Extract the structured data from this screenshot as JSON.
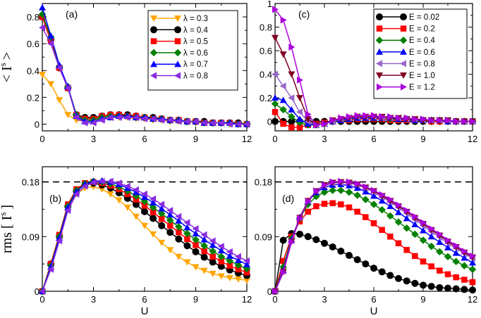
{
  "chart_data": [
    {
      "type": "line",
      "panel": "a",
      "panel_label": "(a)",
      "ylabel_main": "< I",
      "ylabel_sup": "s",
      "ylabel_close": ">",
      "xlabel": "",
      "xlim": [
        0,
        12
      ],
      "ylim": [
        -0.05,
        0.9
      ],
      "xticks": [
        0,
        3,
        6,
        9,
        12
      ],
      "yticks": [
        0,
        0.2,
        0.4,
        0.6,
        0.8
      ],
      "ytick_labels": [
        "0",
        "0.2",
        "0.4",
        "0.6",
        "0.8"
      ],
      "legend_position": "top-right",
      "x": [
        0,
        0.5,
        1,
        1.5,
        2,
        2.5,
        3,
        3.5,
        4,
        4.5,
        5,
        5.5,
        6,
        6.5,
        7,
        7.5,
        8,
        8.5,
        9,
        9.5,
        10,
        10.5,
        11,
        11.5,
        12
      ],
      "series": [
        {
          "name": "λ = 0.3",
          "color": "#ffa500",
          "marker": "triangle-down",
          "values": [
            0.37,
            0.3,
            0.18,
            0.07,
            0.03,
            0.02,
            0.03,
            0.04,
            0.05,
            0.05,
            0.05,
            0.04,
            0.04,
            0.03,
            0.03,
            0.02,
            0.02,
            0.02,
            0.01,
            0.01,
            0.01,
            0.01,
            0.0,
            0.0,
            0.0
          ]
        },
        {
          "name": "λ = 0.4",
          "color": "#000000",
          "marker": "circle",
          "values": [
            0.8,
            0.63,
            0.42,
            0.27,
            0.07,
            0.05,
            0.05,
            0.06,
            0.07,
            0.07,
            0.07,
            0.06,
            0.05,
            0.05,
            0.04,
            0.03,
            0.03,
            0.02,
            0.02,
            0.02,
            0.01,
            0.01,
            0.01,
            0.01,
            0.0
          ]
        },
        {
          "name": "λ = 0.5",
          "color": "#ff0000",
          "marker": "square",
          "values": [
            0.8,
            0.62,
            0.42,
            0.27,
            0.07,
            0.04,
            0.04,
            0.06,
            0.07,
            0.07,
            0.06,
            0.06,
            0.05,
            0.04,
            0.04,
            0.03,
            0.03,
            0.02,
            0.02,
            0.01,
            0.01,
            0.01,
            0.01,
            0.0,
            0.0
          ]
        },
        {
          "name": "λ = 0.6",
          "color": "#008000",
          "marker": "diamond",
          "values": [
            0.82,
            0.65,
            0.43,
            0.28,
            0.07,
            0.03,
            0.03,
            0.05,
            0.06,
            0.06,
            0.06,
            0.05,
            0.05,
            0.04,
            0.04,
            0.03,
            0.03,
            0.02,
            0.02,
            0.01,
            0.01,
            0.01,
            0.01,
            0.0,
            0.0
          ]
        },
        {
          "name": "λ = 0.7",
          "color": "#0000ff",
          "marker": "triangle-up",
          "values": [
            0.87,
            0.66,
            0.44,
            0.28,
            0.06,
            0.02,
            0.02,
            0.04,
            0.05,
            0.06,
            0.06,
            0.05,
            0.05,
            0.04,
            0.04,
            0.03,
            0.03,
            0.02,
            0.02,
            0.01,
            0.01,
            0.01,
            0.01,
            0.0,
            0.0
          ]
        },
        {
          "name": "λ = 0.8",
          "color": "#8a2be2",
          "marker": "triangle-left",
          "values": [
            0.72,
            0.6,
            0.42,
            0.27,
            0.05,
            0.01,
            0.01,
            0.03,
            0.05,
            0.05,
            0.05,
            0.05,
            0.04,
            0.04,
            0.03,
            0.03,
            0.02,
            0.02,
            0.02,
            0.01,
            0.01,
            0.01,
            0.0,
            0.0,
            0.0
          ]
        }
      ]
    },
    {
      "type": "line",
      "panel": "c",
      "panel_label": "(c)",
      "xlabel": "",
      "xlim": [
        0,
        12
      ],
      "ylim": [
        -0.08,
        1.0
      ],
      "xticks": [
        0,
        3,
        6,
        9,
        12
      ],
      "yticks": [
        0,
        0.2,
        0.4,
        0.6,
        0.8,
        1.0
      ],
      "ytick_labels": [
        "0",
        "0.2",
        "0.4",
        "0.6",
        "0.8",
        "1"
      ],
      "legend_position": "top-right",
      "x": [
        0,
        0.5,
        1,
        1.5,
        2,
        2.5,
        3,
        3.5,
        4,
        4.5,
        5,
        5.5,
        6,
        6.5,
        7,
        7.5,
        8,
        8.5,
        9,
        9.5,
        10,
        10.5,
        11,
        11.5,
        12
      ],
      "series": [
        {
          "name": "E = 0.02",
          "color": "#000000",
          "marker": "circle",
          "values": [
            0.0,
            0.0,
            0.0,
            0.0,
            0.0,
            0.0,
            0.0,
            0.0,
            0.0,
            0.0,
            0.0,
            0.0,
            0.0,
            0.0,
            0.0,
            0.0,
            0.0,
            0.0,
            0.0,
            0.0,
            0.0,
            0.0,
            0.0,
            0.0,
            0.0
          ]
        },
        {
          "name": "E = 0.2",
          "color": "#ff0000",
          "marker": "square",
          "values": [
            0.08,
            -0.02,
            -0.05,
            -0.05,
            -0.03,
            -0.02,
            -0.01,
            0.0,
            0.01,
            0.01,
            0.02,
            0.02,
            0.02,
            0.02,
            0.01,
            0.01,
            0.01,
            0.01,
            0.01,
            0.0,
            0.0,
            0.0,
            0.0,
            0.0,
            0.0
          ]
        },
        {
          "name": "E = 0.4",
          "color": "#008000",
          "marker": "diamond",
          "values": [
            0.15,
            0.1,
            0.04,
            -0.01,
            -0.03,
            -0.03,
            -0.02,
            0.0,
            0.01,
            0.02,
            0.03,
            0.03,
            0.03,
            0.03,
            0.02,
            0.02,
            0.02,
            0.01,
            0.01,
            0.01,
            0.01,
            0.0,
            0.0,
            0.0,
            0.0
          ]
        },
        {
          "name": "E = 0.6",
          "color": "#0000ff",
          "marker": "triangle-up",
          "values": [
            0.2,
            0.18,
            0.1,
            0.02,
            -0.02,
            -0.03,
            -0.02,
            0.0,
            0.01,
            0.02,
            0.03,
            0.03,
            0.03,
            0.03,
            0.03,
            0.02,
            0.02,
            0.01,
            0.01,
            0.01,
            0.01,
            0.0,
            0.0,
            0.0,
            0.0
          ]
        },
        {
          "name": "E = 0.8",
          "color": "#9966cc",
          "marker": "triangle-left",
          "values": [
            0.4,
            0.3,
            0.2,
            0.08,
            0.0,
            -0.03,
            -0.02,
            0.0,
            0.02,
            0.03,
            0.04,
            0.04,
            0.04,
            0.03,
            0.03,
            0.03,
            0.02,
            0.02,
            0.01,
            0.01,
            0.01,
            0.01,
            0.0,
            0.0,
            0.0
          ]
        },
        {
          "name": "E = 1.0",
          "color": "#800020",
          "marker": "triangle-down",
          "values": [
            0.71,
            0.57,
            0.4,
            0.2,
            0.02,
            -0.03,
            -0.02,
            0.01,
            0.02,
            0.03,
            0.04,
            0.04,
            0.04,
            0.04,
            0.03,
            0.03,
            0.02,
            0.02,
            0.01,
            0.01,
            0.01,
            0.01,
            0.0,
            0.0,
            0.0
          ]
        },
        {
          "name": "E = 1.2",
          "color": "#aa00dd",
          "marker": "triangle-right",
          "values": [
            0.95,
            0.86,
            0.63,
            0.35,
            0.06,
            -0.03,
            -0.02,
            0.01,
            0.03,
            0.04,
            0.05,
            0.05,
            0.05,
            0.04,
            0.04,
            0.03,
            0.03,
            0.02,
            0.02,
            0.01,
            0.01,
            0.01,
            0.0,
            0.0,
            0.0
          ]
        }
      ]
    },
    {
      "type": "line",
      "panel": "b",
      "panel_label": "(b)",
      "ylabel_main": "rms [ I",
      "ylabel_sup": "s",
      "ylabel_close": "]",
      "xlabel": "U",
      "xlim": [
        0,
        12
      ],
      "ylim": [
        0,
        0.205
      ],
      "xticks": [
        0,
        3,
        6,
        9,
        12
      ],
      "yticks": [
        0,
        0.09,
        0.18
      ],
      "ytick_labels": [
        "0",
        "0.09",
        "0.18"
      ],
      "reference_line": 0.18,
      "x": [
        0,
        0.5,
        1,
        1.5,
        2,
        2.5,
        3,
        3.5,
        4,
        4.5,
        5,
        5.5,
        6,
        6.5,
        7,
        7.5,
        8,
        8.5,
        9,
        9.5,
        10,
        10.5,
        11,
        11.5,
        12
      ],
      "series": [
        {
          "name": "λ = 0.3",
          "color": "#ffa500",
          "marker": "triangle-down",
          "values": [
            0.0,
            0.045,
            0.09,
            0.135,
            0.16,
            0.17,
            0.172,
            0.168,
            0.16,
            0.15,
            0.138,
            0.123,
            0.108,
            0.094,
            0.08,
            0.068,
            0.057,
            0.048,
            0.04,
            0.034,
            0.029,
            0.025,
            0.022,
            0.02,
            0.018
          ]
        },
        {
          "name": "λ = 0.4",
          "color": "#000000",
          "marker": "circle",
          "values": [
            0.0,
            0.045,
            0.09,
            0.14,
            0.165,
            0.176,
            0.178,
            0.175,
            0.17,
            0.162,
            0.153,
            0.143,
            0.131,
            0.12,
            0.108,
            0.097,
            0.086,
            0.075,
            0.065,
            0.056,
            0.048,
            0.041,
            0.035,
            0.03,
            0.026
          ]
        },
        {
          "name": "λ = 0.5",
          "color": "#ff0000",
          "marker": "square",
          "values": [
            0.0,
            0.045,
            0.093,
            0.143,
            0.168,
            0.178,
            0.18,
            0.178,
            0.174,
            0.168,
            0.16,
            0.151,
            0.141,
            0.13,
            0.119,
            0.108,
            0.097,
            0.086,
            0.076,
            0.066,
            0.057,
            0.049,
            0.042,
            0.036,
            0.031
          ]
        },
        {
          "name": "λ = 0.6",
          "color": "#008000",
          "marker": "diamond",
          "values": [
            0.0,
            0.042,
            0.09,
            0.14,
            0.166,
            0.177,
            0.181,
            0.18,
            0.177,
            0.172,
            0.165,
            0.157,
            0.148,
            0.138,
            0.128,
            0.117,
            0.106,
            0.095,
            0.085,
            0.075,
            0.066,
            0.057,
            0.05,
            0.043,
            0.037
          ]
        },
        {
          "name": "λ = 0.7",
          "color": "#0000ff",
          "marker": "triangle-up",
          "values": [
            0.0,
            0.04,
            0.088,
            0.138,
            0.164,
            0.176,
            0.181,
            0.182,
            0.18,
            0.176,
            0.17,
            0.163,
            0.155,
            0.146,
            0.136,
            0.126,
            0.116,
            0.105,
            0.095,
            0.085,
            0.076,
            0.067,
            0.058,
            0.051,
            0.044
          ]
        },
        {
          "name": "λ = 0.8",
          "color": "#8a2be2",
          "marker": "triangle-left",
          "values": [
            0.0,
            0.036,
            0.083,
            0.133,
            0.16,
            0.173,
            0.179,
            0.181,
            0.181,
            0.178,
            0.173,
            0.167,
            0.16,
            0.152,
            0.143,
            0.133,
            0.123,
            0.113,
            0.103,
            0.093,
            0.083,
            0.074,
            0.065,
            0.057,
            0.05
          ]
        }
      ]
    },
    {
      "type": "line",
      "panel": "d",
      "panel_label": "(d)",
      "xlabel": "U",
      "xlim": [
        0,
        12
      ],
      "ylim": [
        0,
        0.205
      ],
      "xticks": [
        0,
        3,
        6,
        9,
        12
      ],
      "yticks": [
        0,
        0.09,
        0.18
      ],
      "ytick_labels": [
        "0",
        "0.09",
        "0.18"
      ],
      "reference_line": 0.18,
      "x": [
        0,
        0.5,
        1,
        1.5,
        2,
        2.5,
        3,
        3.5,
        4,
        4.5,
        5,
        5.5,
        6,
        6.5,
        7,
        7.5,
        8,
        8.5,
        9,
        9.5,
        10,
        10.5,
        11,
        11.5,
        12
      ],
      "series": [
        {
          "name": "E = 0.02",
          "color": "#000000",
          "marker": "circle",
          "values": [
            0.0,
            0.084,
            0.095,
            0.094,
            0.09,
            0.085,
            0.079,
            0.073,
            0.066,
            0.059,
            0.052,
            0.045,
            0.038,
            0.032,
            0.026,
            0.021,
            0.017,
            0.013,
            0.01,
            0.008,
            0.006,
            0.005,
            0.004,
            0.003,
            0.002
          ]
        },
        {
          "name": "E = 0.2",
          "color": "#ff0000",
          "marker": "square",
          "values": [
            0.0,
            0.05,
            0.09,
            0.115,
            0.131,
            0.14,
            0.144,
            0.145,
            0.143,
            0.138,
            0.131,
            0.122,
            0.112,
            0.101,
            0.09,
            0.079,
            0.068,
            0.058,
            0.049,
            0.041,
            0.034,
            0.028,
            0.023,
            0.019,
            0.015
          ]
        },
        {
          "name": "E = 0.4",
          "color": "#008000",
          "marker": "diamond",
          "values": [
            0.0,
            0.04,
            0.087,
            0.12,
            0.143,
            0.156,
            0.163,
            0.166,
            0.166,
            0.163,
            0.158,
            0.151,
            0.143,
            0.134,
            0.124,
            0.114,
            0.104,
            0.094,
            0.084,
            0.074,
            0.065,
            0.057,
            0.049,
            0.042,
            0.036
          ]
        },
        {
          "name": "E = 0.6",
          "color": "#0000ff",
          "marker": "triangle-up",
          "values": [
            0.0,
            0.035,
            0.085,
            0.122,
            0.148,
            0.163,
            0.171,
            0.175,
            0.176,
            0.174,
            0.17,
            0.164,
            0.157,
            0.149,
            0.14,
            0.13,
            0.12,
            0.11,
            0.1,
            0.09,
            0.081,
            0.072,
            0.063,
            0.055,
            0.047
          ]
        },
        {
          "name": "E = 0.8",
          "color": "#9966cc",
          "marker": "triangle-left",
          "values": [
            0.0,
            0.033,
            0.083,
            0.122,
            0.149,
            0.165,
            0.174,
            0.178,
            0.179,
            0.178,
            0.175,
            0.17,
            0.163,
            0.155,
            0.147,
            0.138,
            0.128,
            0.118,
            0.108,
            0.098,
            0.089,
            0.079,
            0.071,
            0.062,
            0.054
          ]
        },
        {
          "name": "E = 1.0",
          "color": "#800020",
          "marker": "triangle-down",
          "values": [
            0.0,
            0.032,
            0.082,
            0.121,
            0.149,
            0.165,
            0.175,
            0.179,
            0.18,
            0.179,
            0.176,
            0.171,
            0.165,
            0.157,
            0.149,
            0.14,
            0.131,
            0.121,
            0.111,
            0.101,
            0.092,
            0.082,
            0.073,
            0.064,
            0.056
          ]
        },
        {
          "name": "E = 1.2",
          "color": "#aa00dd",
          "marker": "triangle-right",
          "values": [
            0.0,
            0.031,
            0.081,
            0.12,
            0.148,
            0.165,
            0.175,
            0.18,
            0.181,
            0.18,
            0.177,
            0.172,
            0.166,
            0.159,
            0.151,
            0.142,
            0.133,
            0.123,
            0.113,
            0.103,
            0.094,
            0.084,
            0.075,
            0.066,
            0.058
          ]
        }
      ]
    }
  ]
}
